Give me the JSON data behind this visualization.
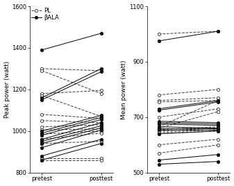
{
  "peak_PL": {
    "pretest": [
      1300,
      1290,
      1180,
      1170,
      1080,
      1050,
      1020,
      1005,
      985,
      960,
      940,
      870,
      860
    ],
    "posttest": [
      1290,
      1180,
      1195,
      1070,
      1060,
      1040,
      1030,
      1010,
      1000,
      990,
      950,
      870,
      860
    ]
  },
  "peak_BALA": {
    "pretest": [
      1390,
      1160,
      1150,
      1000,
      990,
      980,
      960,
      950,
      940,
      920,
      880,
      860
    ],
    "posttest": [
      1470,
      1300,
      1285,
      1075,
      1065,
      1055,
      1040,
      1025,
      1015,
      1005,
      960,
      940
    ]
  },
  "mean_PL": {
    "pretest": [
      1000,
      780,
      760,
      755,
      700,
      665,
      660,
      655,
      650,
      645,
      640,
      600,
      570
    ],
    "posttest": [
      1010,
      800,
      770,
      760,
      730,
      760,
      720,
      665,
      660,
      655,
      650,
      620,
      600
    ]
  },
  "mean_BALA": {
    "pretest": [
      975,
      730,
      725,
      685,
      680,
      675,
      665,
      660,
      655,
      640,
      545,
      530
    ],
    "posttest": [
      1010,
      760,
      755,
      680,
      675,
      670,
      660,
      660,
      655,
      650,
      565,
      540
    ]
  },
  "peak_ylim": [
    800,
    1600
  ],
  "peak_yticks": [
    800,
    1000,
    1200,
    1400,
    1600
  ],
  "mean_ylim": [
    500,
    1100
  ],
  "mean_yticks": [
    500,
    700,
    900,
    1100
  ],
  "pl_color": "#444444",
  "bala_color": "#111111",
  "line_width": 0.75,
  "marker_size": 3.0
}
